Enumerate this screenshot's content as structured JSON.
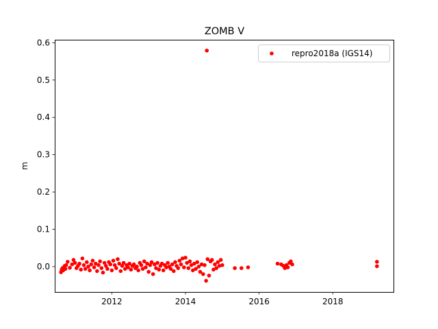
{
  "chart_data": {
    "type": "scatter",
    "title": "ZOMB V",
    "xlabel": "",
    "ylabel": "m",
    "xlim": [
      2010.45,
      2019.65
    ],
    "ylim": [
      -0.068,
      0.608
    ],
    "x_ticks": [
      2012,
      2014,
      2016,
      2018
    ],
    "y_ticks": [
      0.0,
      0.1,
      0.2,
      0.3,
      0.4,
      0.5,
      0.6
    ],
    "y_tick_labels": [
      "0.0",
      "0.1",
      "0.2",
      "0.3",
      "0.4",
      "0.5",
      "0.6"
    ],
    "grid": false,
    "legend_position": "upper right",
    "series": [
      {
        "name": "repro2018a (IGS14)",
        "color": "#ff0000",
        "marker": "circle",
        "points": [
          [
            2010.62,
            -0.015
          ],
          [
            2010.64,
            -0.008
          ],
          [
            2010.66,
            -0.004
          ],
          [
            2010.68,
            -0.01
          ],
          [
            2010.7,
            -0.002
          ],
          [
            2010.72,
            0.002
          ],
          [
            2010.74,
            -0.006
          ],
          [
            2010.76,
            0.004
          ],
          [
            2010.8,
            0.013
          ],
          [
            2010.86,
            -0.003
          ],
          [
            2010.92,
            0.006
          ],
          [
            2010.96,
            0.018
          ],
          [
            2011.0,
            0.01
          ],
          [
            2011.04,
            -0.004
          ],
          [
            2011.08,
            0.002
          ],
          [
            2011.12,
            0.008
          ],
          [
            2011.16,
            -0.008
          ],
          [
            2011.2,
            0.022
          ],
          [
            2011.24,
            0.004
          ],
          [
            2011.28,
            -0.006
          ],
          [
            2011.32,
            0.012
          ],
          [
            2011.36,
            0.0
          ],
          [
            2011.4,
            -0.01
          ],
          [
            2011.44,
            0.006
          ],
          [
            2011.48,
            0.016
          ],
          [
            2011.52,
            -0.002
          ],
          [
            2011.56,
            0.008
          ],
          [
            2011.6,
            -0.012
          ],
          [
            2011.64,
            0.004
          ],
          [
            2011.68,
            0.014
          ],
          [
            2011.72,
            -0.004
          ],
          [
            2011.76,
            -0.016
          ],
          [
            2011.8,
            0.01
          ],
          [
            2011.84,
            0.002
          ],
          [
            2011.88,
            -0.006
          ],
          [
            2011.92,
            0.012
          ],
          [
            2011.96,
            0.006
          ],
          [
            2012.0,
            -0.01
          ],
          [
            2012.04,
            0.016
          ],
          [
            2012.08,
            0.004
          ],
          [
            2012.12,
            -0.004
          ],
          [
            2012.16,
            0.02
          ],
          [
            2012.2,
            0.008
          ],
          [
            2012.24,
            -0.012
          ],
          [
            2012.28,
            0.002
          ],
          [
            2012.32,
            0.01
          ],
          [
            2012.36,
            -0.006
          ],
          [
            2012.4,
            0.004
          ],
          [
            2012.44,
            -0.002
          ],
          [
            2012.48,
            0.008
          ],
          [
            2012.52,
            -0.008
          ],
          [
            2012.56,
            0.002
          ],
          [
            2012.6,
            0.006
          ],
          [
            2012.64,
            -0.004
          ],
          [
            2012.68,
            0.0
          ],
          [
            2012.72,
            -0.01
          ],
          [
            2012.76,
            0.01
          ],
          [
            2012.8,
            0.004
          ],
          [
            2012.84,
            -0.006
          ],
          [
            2012.88,
            0.014
          ],
          [
            2012.92,
            -0.002
          ],
          [
            2012.96,
            0.008
          ],
          [
            2013.0,
            -0.014
          ],
          [
            2013.04,
            0.004
          ],
          [
            2013.08,
            0.012
          ],
          [
            2013.12,
            -0.02
          ],
          [
            2013.16,
            0.006
          ],
          [
            2013.2,
            -0.004
          ],
          [
            2013.24,
            0.01
          ],
          [
            2013.28,
            -0.008
          ],
          [
            2013.32,
            0.002
          ],
          [
            2013.36,
            0.008
          ],
          [
            2013.4,
            -0.01
          ],
          [
            2013.44,
            0.004
          ],
          [
            2013.48,
            -0.002
          ],
          [
            2013.52,
            0.01
          ],
          [
            2013.56,
            0.0
          ],
          [
            2013.6,
            -0.006
          ],
          [
            2013.64,
            0.006
          ],
          [
            2013.68,
            -0.012
          ],
          [
            2013.72,
            0.012
          ],
          [
            2013.76,
            0.002
          ],
          [
            2013.8,
            -0.004
          ],
          [
            2013.84,
            0.016
          ],
          [
            2013.88,
            0.006
          ],
          [
            2013.92,
            0.022
          ],
          [
            2013.96,
            -0.002
          ],
          [
            2014.0,
            0.024
          ],
          [
            2014.04,
            0.01
          ],
          [
            2014.08,
            -0.004
          ],
          [
            2014.12,
            0.014
          ],
          [
            2014.16,
            0.004
          ],
          [
            2014.2,
            -0.01
          ],
          [
            2014.24,
            0.008
          ],
          [
            2014.28,
            -0.006
          ],
          [
            2014.32,
            0.012
          ],
          [
            2014.36,
            0.0
          ],
          [
            2014.4,
            -0.014
          ],
          [
            2014.44,
            0.006
          ],
          [
            2014.48,
            -0.02
          ],
          [
            2014.52,
            0.004
          ],
          [
            2014.56,
            -0.038
          ],
          [
            2014.58,
            0.579
          ],
          [
            2014.6,
            0.02
          ],
          [
            2014.64,
            -0.024
          ],
          [
            2014.68,
            0.014
          ],
          [
            2014.72,
            0.018
          ],
          [
            2014.76,
            -0.008
          ],
          [
            2014.8,
            0.006
          ],
          [
            2014.84,
            -0.004
          ],
          [
            2014.88,
            0.012
          ],
          [
            2014.92,
            0.002
          ],
          [
            2014.96,
            0.018
          ],
          [
            2015.0,
            0.004
          ],
          [
            2015.34,
            -0.004
          ],
          [
            2015.52,
            -0.004
          ],
          [
            2015.7,
            -0.002
          ],
          [
            2016.5,
            0.008
          ],
          [
            2016.6,
            0.006
          ],
          [
            2016.66,
            0.002
          ],
          [
            2016.7,
            -0.004
          ],
          [
            2016.74,
            0.004
          ],
          [
            2016.78,
            -0.002
          ],
          [
            2016.82,
            0.01
          ],
          [
            2016.86,
            0.014
          ],
          [
            2016.9,
            0.006
          ],
          [
            2019.2,
            0.013
          ],
          [
            2019.2,
            0.001
          ]
        ]
      }
    ]
  }
}
